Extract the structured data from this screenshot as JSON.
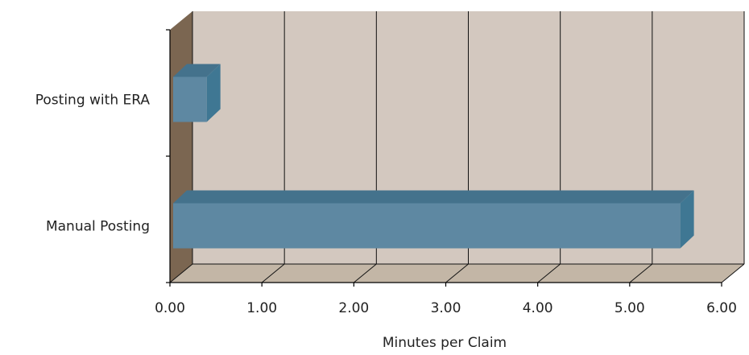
{
  "chart_data": {
    "type": "bar",
    "orientation": "horizontal",
    "style": "3d",
    "categories": [
      "Posting with ERA",
      "Manual Posting"
    ],
    "values": [
      0.4,
      5.55
    ],
    "xlabel": "Minutes per Claim",
    "xlim": [
      0,
      6
    ],
    "xticks": [
      "0.00",
      "1.00",
      "2.00",
      "3.00",
      "4.00",
      "5.00",
      "6.00"
    ],
    "grid": "vertical",
    "legend": "none"
  },
  "colors": {
    "bar_front": "#5e88a2",
    "bar_top": "#44728c",
    "bar_side": "#3f7793",
    "back_wall": "#d3c8bf",
    "side_wall": "#7b6651",
    "floor": "#c3b6a6",
    "grid": "#111111"
  }
}
